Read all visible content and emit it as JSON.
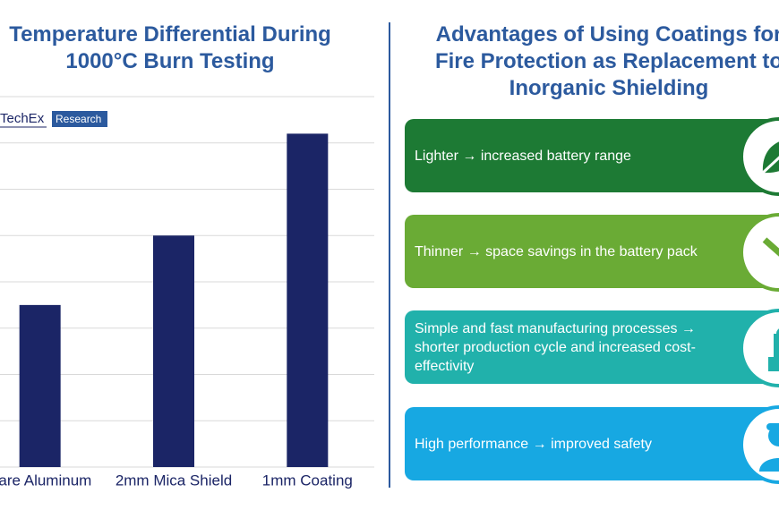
{
  "chart_data": {
    "type": "bar",
    "title": "Temperature Differential During 1000°C Burn Testing",
    "logo": {
      "brand": "TechEx",
      "tag": "Research"
    },
    "categories": [
      "Bare Aluminum",
      "2mm Mica Shield",
      "1mm Coating"
    ],
    "values": [
      3.5,
      5,
      7.2
    ],
    "color": "#1b2566",
    "ylim": [
      0,
      8
    ],
    "yticks": [
      0,
      1,
      2,
      3,
      4,
      5,
      6,
      7,
      8
    ],
    "grid": true
  },
  "advantages": {
    "title": "Advantages of Using Coatings for Fire Protection as Replacement to Inorganic Shielding",
    "items": [
      {
        "text": "Lighter → increased battery range",
        "color": "#1d7a34"
      },
      {
        "text": "Thinner → space savings in the battery pack",
        "color": "#6aab35"
      },
      {
        "text": "Simple and fast manufacturing processes → shorter production cycle and increased cost-effectivity",
        "color": "#21b1ab"
      },
      {
        "text": "High performance → improved safety",
        "color": "#17a8e2"
      }
    ]
  }
}
